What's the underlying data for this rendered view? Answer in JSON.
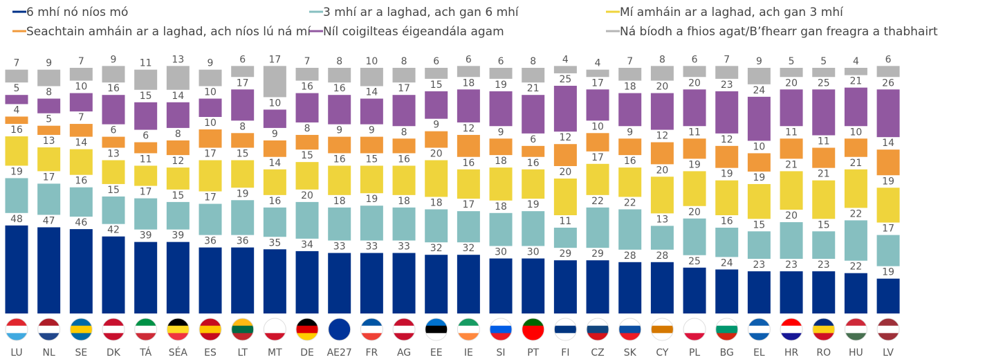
{
  "chart_data": {
    "type": "stacked_bar",
    "categories": [
      "LU",
      "NL",
      "SE",
      "DK",
      "TÁ",
      "SÉA",
      "ES",
      "LT",
      "MT",
      "DE",
      "AE27",
      "FR",
      "AG",
      "EE",
      "IE",
      "SI",
      "PT",
      "FI",
      "CZ",
      "SK",
      "CY",
      "PL",
      "BG",
      "EL",
      "HR",
      "RO",
      "HU",
      "LV"
    ],
    "series": [
      {
        "name": "6 mhí nó níos mó",
        "color": "#003087",
        "values": [
          48,
          47,
          46,
          42,
          39,
          39,
          36,
          36,
          35,
          34,
          33,
          33,
          33,
          32,
          32,
          30,
          30,
          29,
          29,
          28,
          28,
          25,
          24,
          23,
          23,
          23,
          22,
          19
        ]
      },
      {
        "name": "3 mhí ar a laghad, ach gan 6 mhí",
        "color": "#86bfc0",
        "values": [
          19,
          17,
          16,
          15,
          17,
          15,
          17,
          19,
          16,
          20,
          18,
          19,
          18,
          18,
          17,
          18,
          19,
          11,
          22,
          22,
          13,
          20,
          16,
          15,
          20,
          15,
          22,
          17
        ]
      },
      {
        "name": "Mí amháin ar a laghad, ach gan 3 mhí",
        "color": "#efd43c",
        "values": [
          16,
          13,
          14,
          13,
          11,
          12,
          17,
          15,
          14,
          15,
          16,
          15,
          16,
          20,
          16,
          18,
          16,
          20,
          17,
          16,
          20,
          19,
          19,
          19,
          21,
          21,
          21,
          19
        ]
      },
      {
        "name": "Seachtain amháin ar a laghad, ach níos lú ná mí",
        "color": "#f0993a",
        "values": [
          4,
          5,
          7,
          6,
          6,
          8,
          10,
          8,
          9,
          8,
          9,
          9,
          8,
          9,
          12,
          9,
          6,
          12,
          10,
          9,
          12,
          11,
          12,
          10,
          11,
          11,
          10,
          14
        ]
      },
      {
        "name": "Níl coigilteas éigeandála agam",
        "color": "#9158a0",
        "values": [
          5,
          8,
          10,
          16,
          15,
          14,
          10,
          17,
          10,
          16,
          16,
          14,
          17,
          15,
          18,
          19,
          21,
          25,
          17,
          18,
          20,
          20,
          23,
          24,
          20,
          25,
          21,
          26
        ]
      },
      {
        "name": "Ná bíodh a fhios agat/B’fhearr gan freagra a thabhairt",
        "color": "#b5b5b5",
        "values": [
          7,
          9,
          7,
          9,
          11,
          13,
          9,
          6,
          17,
          7,
          8,
          10,
          8,
          6,
          6,
          6,
          8,
          4,
          4,
          7,
          8,
          6,
          7,
          9,
          5,
          5,
          4,
          6
        ]
      }
    ]
  }
}
